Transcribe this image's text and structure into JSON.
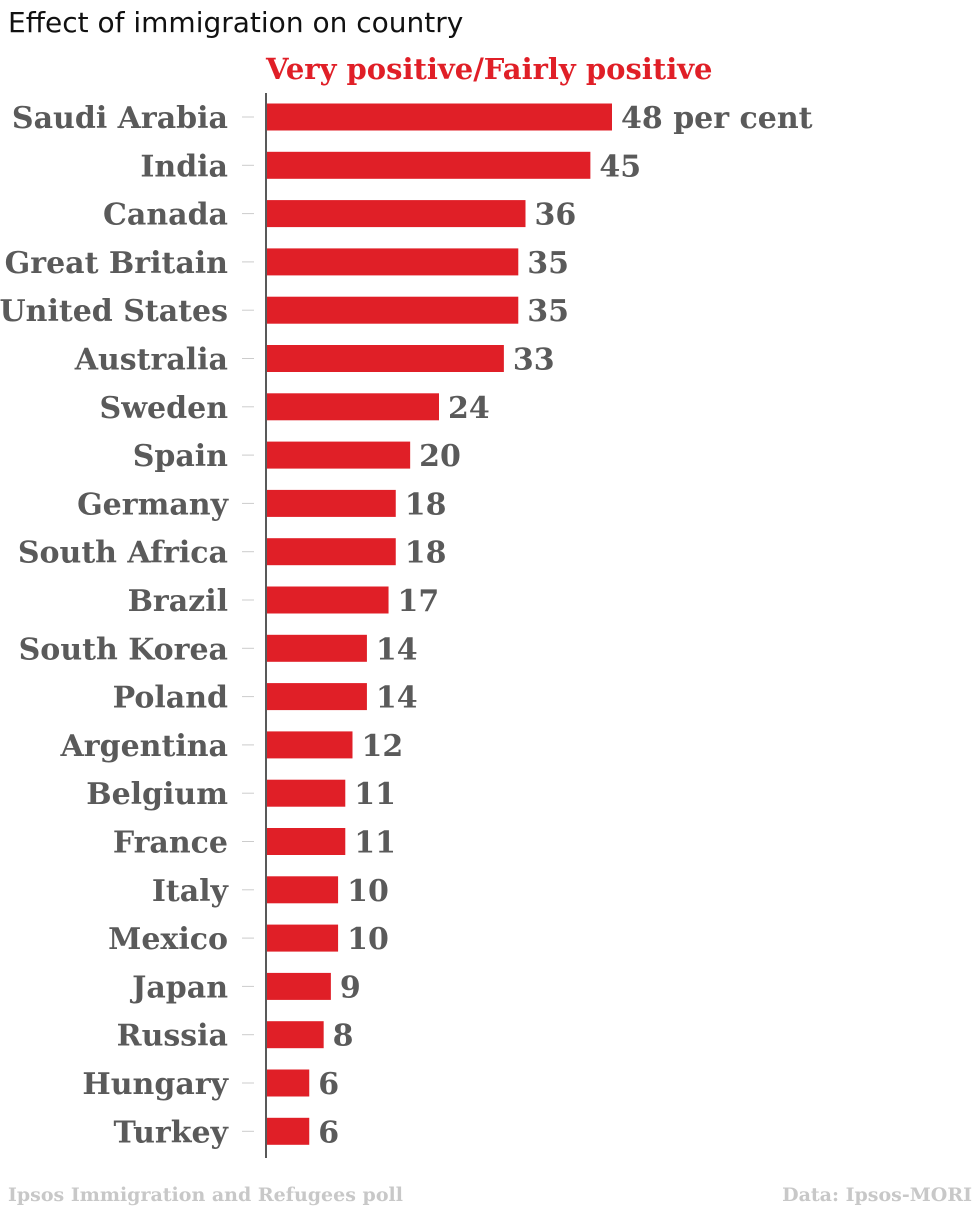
{
  "header": {
    "title": "Effect of immigration on country"
  },
  "chart_data": {
    "type": "bar",
    "orientation": "horizontal",
    "series": [
      {
        "name": "Very positive/Fairly positive",
        "color": "#e01f27",
        "values": [
          48,
          45,
          36,
          35,
          35,
          33,
          24,
          20,
          18,
          18,
          17,
          14,
          14,
          12,
          11,
          11,
          10,
          10,
          9,
          8,
          6,
          6
        ],
        "value_labels": [
          "48 per cent",
          "45",
          "36",
          "35",
          "35",
          "33",
          "24",
          "20",
          "18",
          "18",
          "17",
          "14",
          "14",
          "12",
          "11",
          "11",
          "10",
          "10",
          "9",
          "8",
          "6",
          "6"
        ]
      }
    ],
    "categories": [
      "Saudi Arabia",
      "India",
      "Canada",
      "Great Britain",
      "United States",
      "Australia",
      "Sweden",
      "Spain",
      "Germany",
      "South Africa",
      "Brazil",
      "South Korea",
      "Poland",
      "Argentina",
      "Belgium",
      "France",
      "Italy",
      "Mexico",
      "Japan",
      "Russia",
      "Hungary",
      "Turkey"
    ],
    "xlim": [
      0,
      48
    ],
    "grid": false,
    "legend_position": "top",
    "label_color": "#5a5a5a",
    "axis_color": "#222222",
    "tick_color": "#cccccc"
  },
  "footer": {
    "source_left": "Ipsos Immigration and Refugees poll",
    "source_right": "Data: Ipsos-MORI"
  }
}
